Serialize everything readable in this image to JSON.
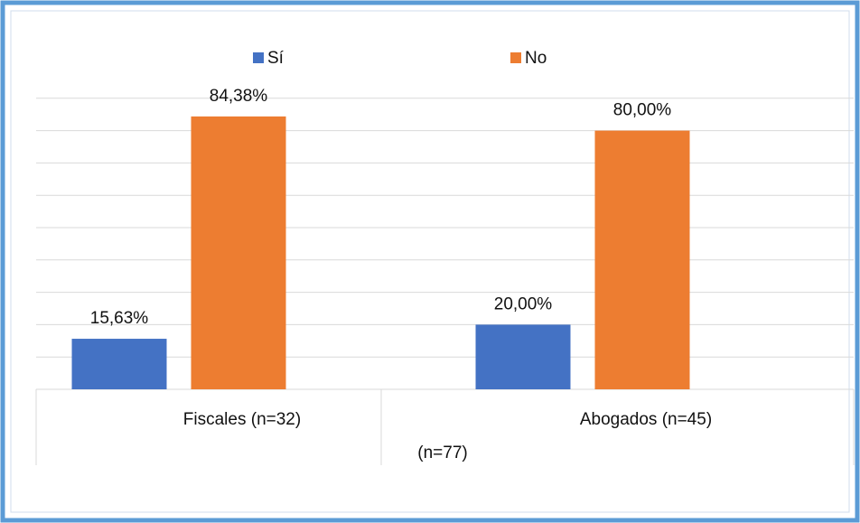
{
  "chart_data": {
    "type": "bar",
    "categories": [
      "Fiscales (n=32)",
      "Abogados (n=45)"
    ],
    "xlabel": "(n=77)",
    "series": [
      {
        "name": "Sí",
        "color": "#4472c4",
        "values": [
          15.63,
          20.0
        ],
        "value_labels": [
          "15,63%",
          "20,00%"
        ]
      },
      {
        "name": "No",
        "color": "#ed7d31",
        "values": [
          84.38,
          80.0
        ],
        "value_labels": [
          "84,38%",
          "80,00%"
        ]
      }
    ],
    "ylim": [
      0,
      100
    ],
    "yticks": [
      0,
      10,
      20,
      30,
      40,
      50,
      60,
      70,
      80,
      90
    ],
    "grid": true,
    "legend": "top"
  }
}
